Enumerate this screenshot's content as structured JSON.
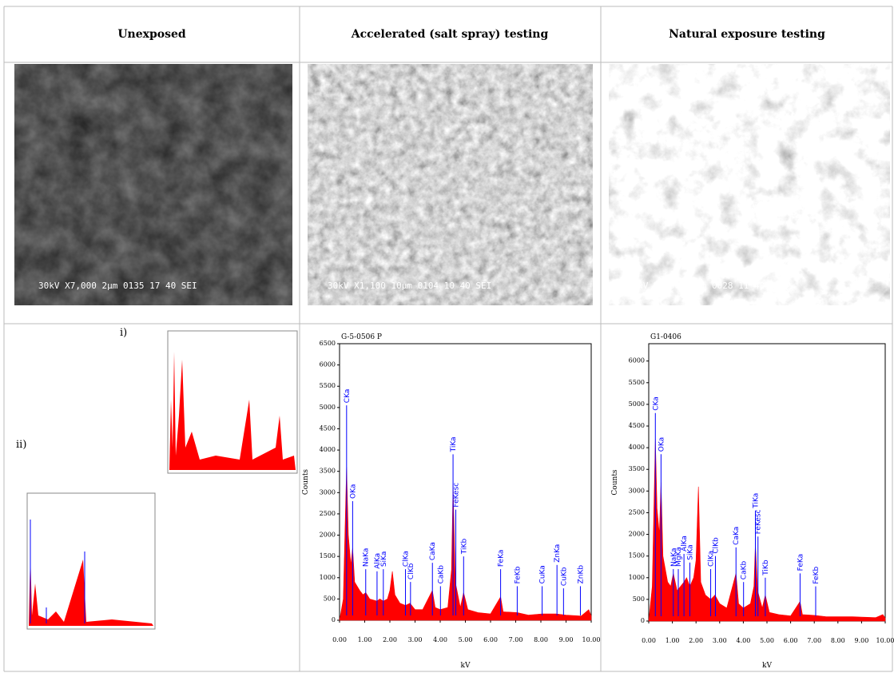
{
  "table": {
    "headers": [
      "Unexposed",
      "Accelerated (salt spray) testing",
      "Natural exposure testing"
    ],
    "sem_captions": [
      "30kV   X7,000   2μm  0135 17 40 SEI",
      "30kV   X1,100   10μm  0104 10 40 SEI",
      "30kV   X5,000   2μm  0028 11 40 SEI"
    ],
    "inset_labels": [
      "i)",
      "ii)"
    ],
    "spectra": [
      {
        "title": "G-5-0506 P",
        "ylabel": "Counts",
        "xlabel": "kV",
        "ylim": [
          0,
          6500
        ],
        "yticks": [
          0,
          500,
          1000,
          1500,
          2000,
          2500,
          3000,
          3500,
          4000,
          4500,
          5000,
          5500,
          6000,
          6500
        ],
        "xlim": [
          0,
          10
        ],
        "xticks": [
          {
            "value": 0,
            "label": "0.00"
          },
          {
            "value": 1,
            "label": "1.00"
          },
          {
            "value": 2,
            "label": "2.00"
          },
          {
            "value": 3,
            "label": "3.00"
          },
          {
            "value": 4,
            "label": "4.00"
          },
          {
            "value": 5,
            "label": "5.00"
          },
          {
            "value": 6,
            "label": "6.00"
          },
          {
            "value": 7,
            "label": "7.00"
          },
          {
            "value": 8,
            "label": "8.00"
          },
          {
            "value": 9,
            "label": "9.00"
          },
          {
            "value": 10,
            "label": "10.00"
          }
        ],
        "color": "#ff0000",
        "marker_color": "#0000ff",
        "x": [
          0,
          0.15,
          0.28,
          0.35,
          0.45,
          0.52,
          0.6,
          0.8,
          0.93,
          1.04,
          1.2,
          1.49,
          1.6,
          1.74,
          1.9,
          2.0,
          2.1,
          2.2,
          2.4,
          2.62,
          2.8,
          3.0,
          3.3,
          3.69,
          3.8,
          4.0,
          4.3,
          4.45,
          4.51,
          4.6,
          4.8,
          4.93,
          5.1,
          5.5,
          6.0,
          6.4,
          6.5,
          7.06,
          7.5,
          8.05,
          8.6,
          9.0,
          9.6,
          9.9,
          10
        ],
        "y": [
          0,
          500,
          3600,
          2000,
          1300,
          1700,
          900,
          700,
          600,
          650,
          500,
          450,
          500,
          450,
          500,
          700,
          1150,
          600,
          400,
          350,
          400,
          250,
          250,
          700,
          300,
          250,
          300,
          1200,
          3200,
          900,
          300,
          650,
          250,
          180,
          150,
          550,
          200,
          180,
          120,
          150,
          150,
          120,
          100,
          250,
          100
        ],
        "markers": [
          {
            "label": "CKa",
            "x": 0.28,
            "y": 5050
          },
          {
            "label": "OKa",
            "x": 0.52,
            "y": 2800
          },
          {
            "label": "NaKa",
            "x": 1.04,
            "y": 1200
          },
          {
            "label": "AlKa",
            "x": 1.49,
            "y": 1150
          },
          {
            "label": "SiKa",
            "x": 1.74,
            "y": 1200
          },
          {
            "label": "ClKa",
            "x": 2.62,
            "y": 1200
          },
          {
            "label": "ClKb",
            "x": 2.82,
            "y": 900
          },
          {
            "label": "CaKa",
            "x": 3.69,
            "y": 1350
          },
          {
            "label": "CaKb",
            "x": 4.01,
            "y": 800
          },
          {
            "label": "TiKa",
            "x": 4.51,
            "y": 3900
          },
          {
            "label": "FeKesc",
            "x": 4.62,
            "y": 2600
          },
          {
            "label": "TiKb",
            "x": 4.93,
            "y": 1500
          },
          {
            "label": "FeKa",
            "x": 6.4,
            "y": 1200
          },
          {
            "label": "FeKb",
            "x": 7.06,
            "y": 800
          },
          {
            "label": "CuKa",
            "x": 8.05,
            "y": 800
          },
          {
            "label": "ZnKa",
            "x": 8.64,
            "y": 1300
          },
          {
            "label": "CuKb",
            "x": 8.9,
            "y": 750
          },
          {
            "label": "ZnKb",
            "x": 9.57,
            "y": 800
          }
        ]
      },
      {
        "title": "G1-0406",
        "ylabel": "Counts",
        "xlabel": "kV",
        "ylim": [
          0,
          6400
        ],
        "yticks": [
          0,
          500,
          1000,
          1500,
          2000,
          2500,
          3000,
          3500,
          4000,
          4500,
          5000,
          5500,
          6000
        ],
        "xlim": [
          0,
          10
        ],
        "xticks": [
          {
            "value": 0,
            "label": "0.00"
          },
          {
            "value": 1,
            "label": "1.00"
          },
          {
            "value": 2,
            "label": "2.00"
          },
          {
            "value": 3,
            "label": "3.00"
          },
          {
            "value": 4,
            "label": "4.00"
          },
          {
            "value": 5,
            "label": "5.00"
          },
          {
            "value": 6,
            "label": "6.00"
          },
          {
            "value": 7,
            "label": "7.00"
          },
          {
            "value": 8,
            "label": "8.00"
          },
          {
            "value": 9,
            "label": "9.00"
          },
          {
            "value": 10,
            "label": "10.00"
          }
        ],
        "color": "#ff0000",
        "marker_color": "#0000ff",
        "x": [
          0,
          0.15,
          0.28,
          0.35,
          0.45,
          0.52,
          0.6,
          0.8,
          0.93,
          1.04,
          1.2,
          1.49,
          1.6,
          1.74,
          1.9,
          2.0,
          2.1,
          2.2,
          2.4,
          2.62,
          2.8,
          3.0,
          3.3,
          3.69,
          3.8,
          4.0,
          4.3,
          4.45,
          4.51,
          4.6,
          4.8,
          4.93,
          5.1,
          5.5,
          6.0,
          6.4,
          6.5,
          7.06,
          7.5,
          8.05,
          8.6,
          9.0,
          9.6,
          9.9,
          10
        ],
        "y": [
          0,
          800,
          4200,
          2600,
          2000,
          3200,
          1500,
          900,
          800,
          1100,
          700,
          900,
          1000,
          800,
          1000,
          1400,
          3100,
          900,
          600,
          500,
          600,
          400,
          300,
          1100,
          400,
          300,
          400,
          800,
          1800,
          700,
          300,
          600,
          200,
          150,
          120,
          450,
          150,
          130,
          100,
          100,
          100,
          90,
          80,
          150,
          70
        ],
        "markers": [
          {
            "label": "CKa",
            "x": 0.28,
            "y": 4800
          },
          {
            "label": "OKa",
            "x": 0.52,
            "y": 3850
          },
          {
            "label": "NaKa",
            "x": 1.04,
            "y": 1200
          },
          {
            "label": "MgKa",
            "x": 1.25,
            "y": 1200
          },
          {
            "label": "AlKa",
            "x": 1.49,
            "y": 1550
          },
          {
            "label": "SiKa",
            "x": 1.74,
            "y": 1350
          },
          {
            "label": "ClKa",
            "x": 2.62,
            "y": 1200
          },
          {
            "label": "ClKb",
            "x": 2.82,
            "y": 1500
          },
          {
            "label": "CaKa",
            "x": 3.69,
            "y": 1700
          },
          {
            "label": "CaKb",
            "x": 4.01,
            "y": 900
          },
          {
            "label": "TiKa",
            "x": 4.51,
            "y": 2550
          },
          {
            "label": "FeKesc",
            "x": 4.62,
            "y": 1950
          },
          {
            "label": "TiKb",
            "x": 4.93,
            "y": 1000
          },
          {
            "label": "FeKa",
            "x": 6.4,
            "y": 1100
          },
          {
            "label": "FeKb",
            "x": 7.06,
            "y": 800
          }
        ]
      }
    ]
  }
}
